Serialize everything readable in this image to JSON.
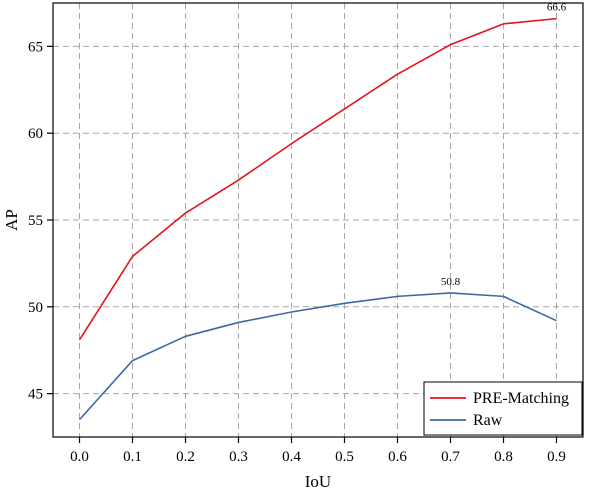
{
  "chart_data": {
    "type": "line",
    "title": "",
    "xlabel": "IoU",
    "ylabel": "AP",
    "x": [
      0.0,
      0.1,
      0.2,
      0.3,
      0.4,
      0.5,
      0.6,
      0.7,
      0.8,
      0.9
    ],
    "x_tick_labels": [
      "0.0",
      "0.1",
      "0.2",
      "0.3",
      "0.4",
      "0.5",
      "0.6",
      "0.7",
      "0.8",
      "0.9"
    ],
    "y_ticks": [
      45,
      50,
      55,
      60,
      65
    ],
    "y_tick_labels": [
      "45",
      "50",
      "55",
      "60",
      "65"
    ],
    "xlim": [
      -0.05,
      0.95
    ],
    "ylim": [
      42.5,
      67.5
    ],
    "grid": true,
    "legend_position": "bottom-right",
    "series": [
      {
        "name": "PRE-Matching",
        "color": "#e3141b",
        "values": [
          48.1,
          52.9,
          55.4,
          57.3,
          59.4,
          61.4,
          63.4,
          65.1,
          66.3,
          66.6
        ]
      },
      {
        "name": "Raw",
        "color": "#3c6aa0",
        "values": [
          43.5,
          46.9,
          48.3,
          49.1,
          49.7,
          50.2,
          50.6,
          50.8,
          50.6,
          49.2
        ]
      }
    ],
    "annotations": [
      {
        "text": "66.6",
        "series": 0,
        "index": 9
      },
      {
        "text": "50.8",
        "series": 1,
        "index": 7
      }
    ]
  }
}
